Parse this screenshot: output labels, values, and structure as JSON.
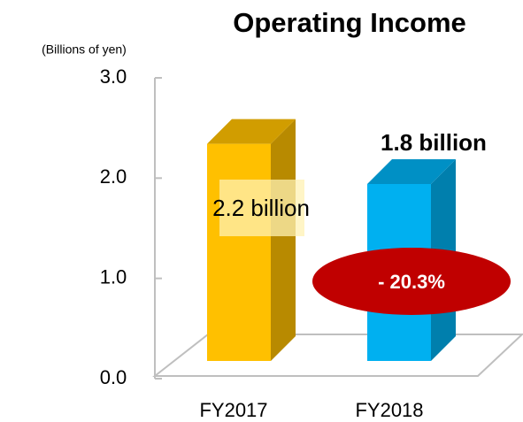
{
  "chart_data": {
    "type": "bar3d",
    "title": "Operating Income",
    "y_label": "(Billions of yen)",
    "categories": [
      "FY2017",
      "FY2018"
    ],
    "values": [
      2.2,
      1.8
    ],
    "value_labels": [
      "2.2 billion",
      "1.8 billion"
    ],
    "colors": [
      "#ffc000",
      "#00b0f0"
    ],
    "ylim": [
      0,
      3
    ],
    "yticks": [
      {
        "value": 0,
        "label": "0.0"
      },
      {
        "value": 1,
        "label": "1.0"
      },
      {
        "value": 2,
        "label": "2.0"
      },
      {
        "value": 3,
        "label": "3.0"
      }
    ],
    "annotation": "- 20.3%"
  }
}
